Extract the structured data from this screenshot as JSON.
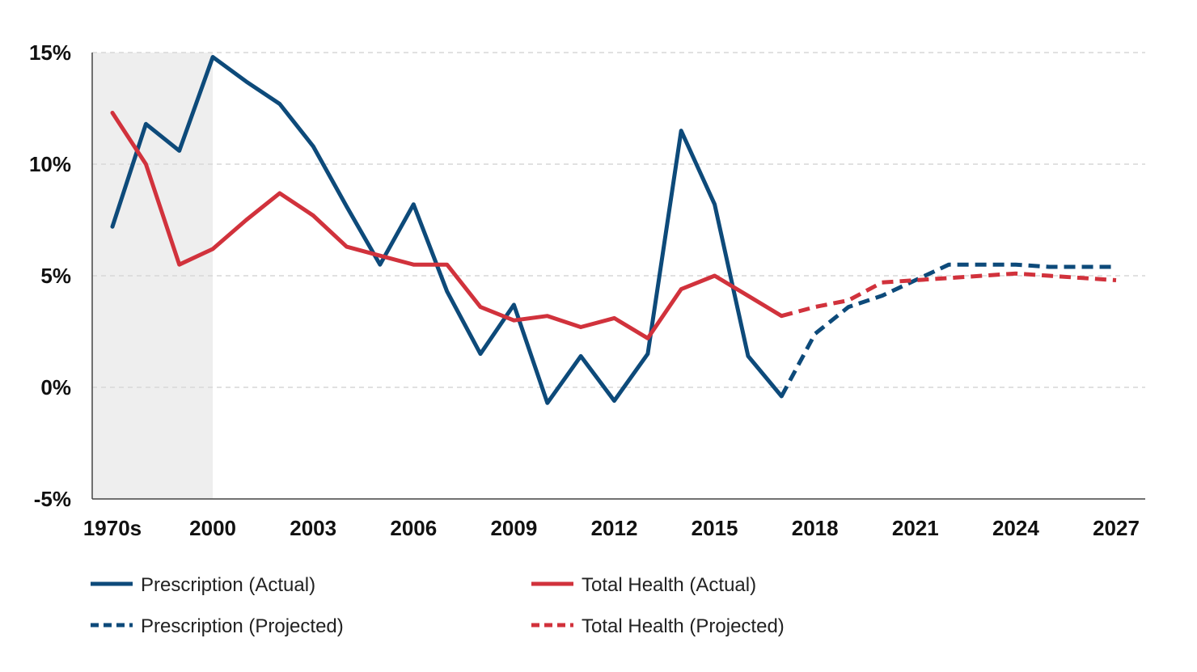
{
  "chart_data": {
    "type": "line",
    "title": "",
    "xlabel": "",
    "ylabel": "",
    "ylim": [
      -5,
      15
    ],
    "y_ticks": [
      "15%",
      "10%",
      "5%",
      "0%",
      "-5%"
    ],
    "y_tick_values": [
      15,
      10,
      5,
      0,
      -5
    ],
    "x_ticks": [
      "1970s",
      "2000",
      "2003",
      "2006",
      "2009",
      "2012",
      "2015",
      "2018",
      "2021",
      "2024",
      "2027"
    ],
    "x_categories": [
      "1970s",
      "1980s",
      "1990s",
      "2000",
      "2001",
      "2002",
      "2003",
      "2004",
      "2005",
      "2006",
      "2007",
      "2008",
      "2009",
      "2010",
      "2011",
      "2012",
      "2013",
      "2014",
      "2015",
      "2016",
      "2017",
      "2018",
      "2019",
      "2020",
      "2021",
      "2022",
      "2023",
      "2024",
      "2025",
      "2026",
      "2027"
    ],
    "shaded_region": [
      "1970s",
      "2000"
    ],
    "grid": "horizontal dashed",
    "legend_position": "bottom",
    "colors": {
      "prescription": "#0d4a7a",
      "total_health": "#d1323c",
      "shade": "#eeeeee"
    },
    "series": [
      {
        "name": "Prescription (Actual)",
        "color": "#0d4a7a",
        "style": "solid",
        "values": [
          7.2,
          11.8,
          10.6,
          14.8,
          13.7,
          12.7,
          10.8,
          8.1,
          5.5,
          8.2,
          4.3,
          1.5,
          3.7,
          -0.7,
          1.4,
          -0.6,
          1.5,
          11.5,
          8.2,
          1.4,
          -0.4,
          null,
          null,
          null,
          null,
          null,
          null,
          null,
          null,
          null,
          null
        ]
      },
      {
        "name": "Total Health (Actual)",
        "color": "#d1323c",
        "style": "solid",
        "values": [
          12.3,
          10.0,
          5.5,
          6.2,
          7.5,
          8.7,
          7.7,
          6.3,
          5.9,
          5.5,
          5.5,
          3.6,
          3.0,
          3.2,
          2.7,
          3.1,
          2.2,
          4.4,
          5.0,
          4.1,
          3.2,
          null,
          null,
          null,
          null,
          null,
          null,
          null,
          null,
          null,
          null
        ]
      },
      {
        "name": "Prescription (Projected)",
        "color": "#0d4a7a",
        "style": "dashed",
        "values": [
          null,
          null,
          null,
          null,
          null,
          null,
          null,
          null,
          null,
          null,
          null,
          null,
          null,
          null,
          null,
          null,
          null,
          null,
          null,
          null,
          -0.4,
          2.4,
          3.6,
          4.1,
          4.8,
          5.5,
          5.5,
          5.5,
          5.4,
          5.4,
          5.4
        ]
      },
      {
        "name": "Total Health (Projected)",
        "color": "#d1323c",
        "style": "dashed",
        "values": [
          null,
          null,
          null,
          null,
          null,
          null,
          null,
          null,
          null,
          null,
          null,
          null,
          null,
          null,
          null,
          null,
          null,
          null,
          null,
          null,
          3.2,
          3.6,
          3.9,
          4.7,
          4.8,
          4.9,
          5.0,
          5.1,
          5.0,
          4.9,
          4.8
        ]
      }
    ]
  }
}
